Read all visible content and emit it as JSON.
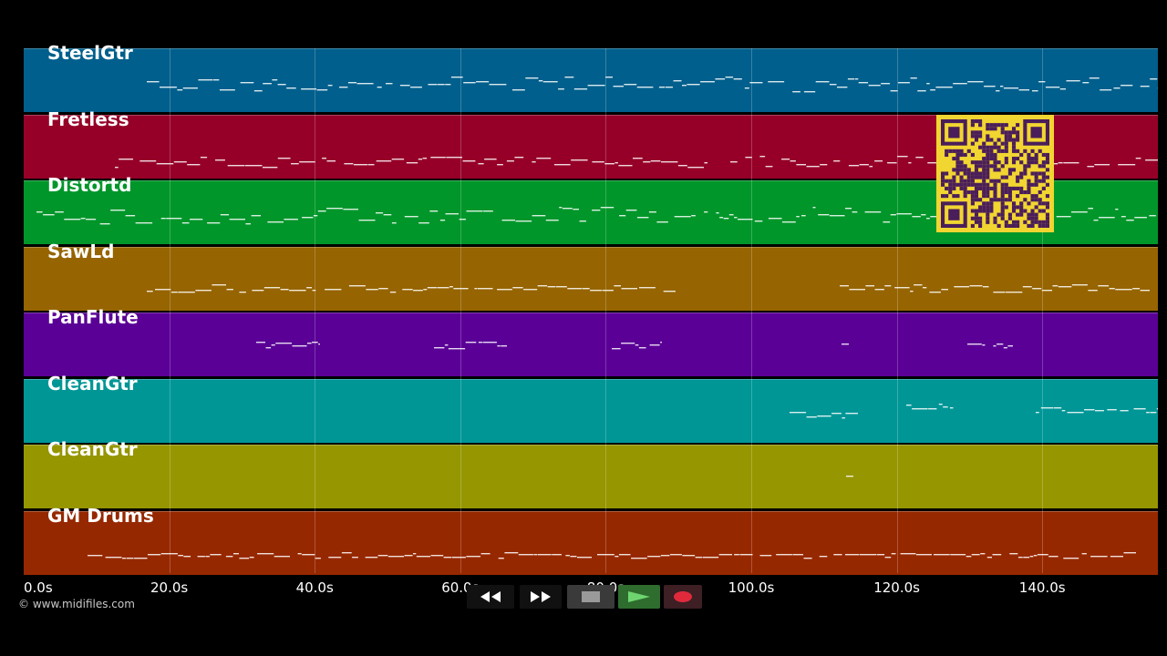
{
  "tracks": [
    {
      "name": "SteelGtr",
      "color": "#005f8c"
    },
    {
      "name": "Fretless",
      "color": "#960028"
    },
    {
      "name": "Distortd",
      "color": "#00962a"
    },
    {
      "name": "SawLd",
      "color": "#966400"
    },
    {
      "name": "PanFlute",
      "color": "#5a0096"
    },
    {
      "name": "CleanGtr",
      "color": "#009696"
    },
    {
      "name": "CleanGtr",
      "color": "#969600"
    },
    {
      "name": "GM Drums",
      "color": "#962800"
    }
  ],
  "time_axis": {
    "labels": [
      "0.0s",
      "20.0s",
      "40.0s",
      "60.0s",
      "80.0s",
      "100.0s",
      "120.0s",
      "140.0s"
    ],
    "seconds": [
      0,
      20,
      40,
      60,
      80,
      100,
      120,
      140
    ]
  },
  "copyright": "© www.midifiles.com",
  "transport": {
    "rewind": "rewind-icon",
    "fast_forward": "fast-forward-icon",
    "stop": "stop-icon",
    "play": "play-icon",
    "record": "record-icon"
  },
  "qr_code": "qr-code"
}
